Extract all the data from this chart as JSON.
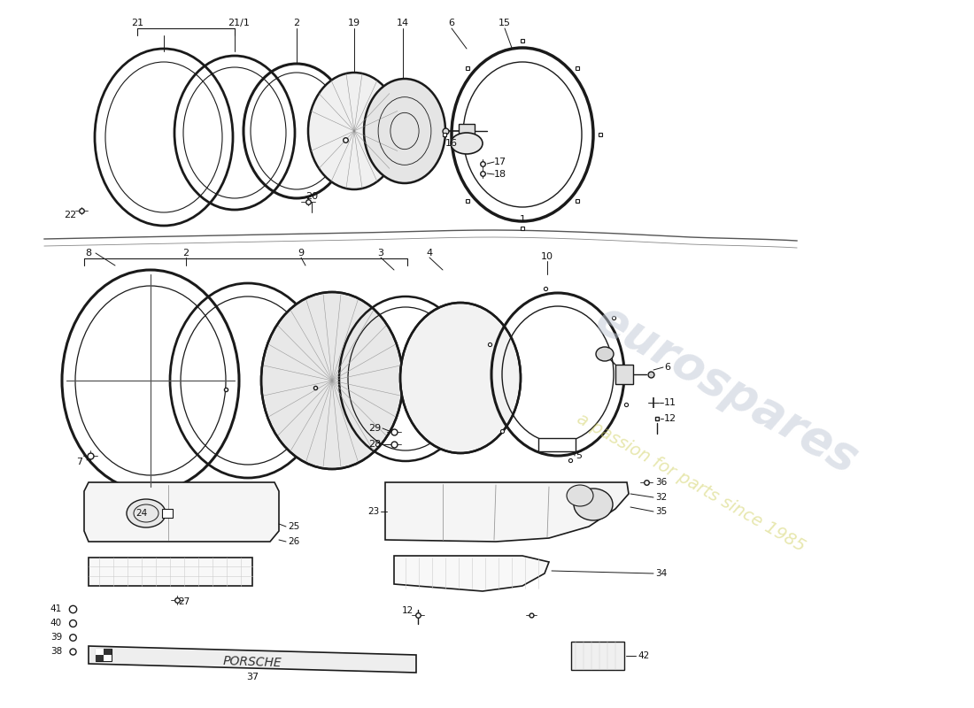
{
  "bg_color": "#ffffff",
  "line_color": "#1a1a1a",
  "watermark1": "eurospares",
  "watermark2": "a passion for parts since 1985",
  "fig_w": 11.0,
  "fig_h": 8.0,
  "dpi": 100
}
